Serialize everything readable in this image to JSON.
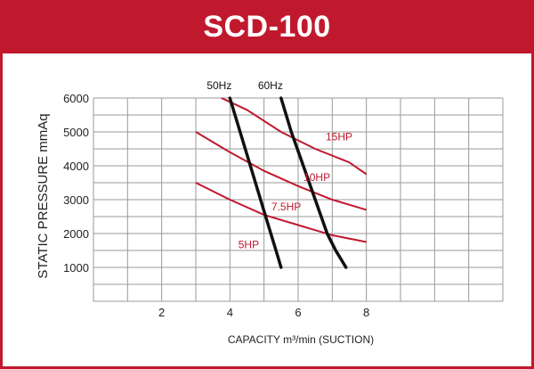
{
  "header": {
    "title": "SCD-100"
  },
  "colors": {
    "brand": "#c0192e",
    "grid": "#9a9a9a",
    "freq_line": "#111111",
    "hp_line": "#c0192e"
  },
  "chart_data": {
    "type": "line",
    "title": "SCD-100",
    "xlabel": "CAPACITY m³/min (SUCTION)",
    "ylabel": "STATIC PRESSURE mmAq",
    "xlim": [
      0,
      12
    ],
    "ylim": [
      0,
      6000
    ],
    "xticks": [
      2,
      4,
      6,
      8
    ],
    "yticks": [
      1000,
      2000,
      3000,
      4000,
      5000,
      6000
    ],
    "grid": true,
    "frequency_curves": [
      {
        "name": "50Hz",
        "points": [
          [
            4.0,
            6000
          ],
          [
            4.3,
            5000
          ],
          [
            4.6,
            4000
          ],
          [
            4.9,
            3000
          ],
          [
            5.2,
            2000
          ],
          [
            5.35,
            1500
          ],
          [
            5.5,
            1000
          ]
        ]
      },
      {
        "name": "60Hz",
        "points": [
          [
            5.5,
            6000
          ],
          [
            5.8,
            5000
          ],
          [
            6.15,
            4000
          ],
          [
            6.5,
            3000
          ],
          [
            6.85,
            2000
          ],
          [
            7.1,
            1500
          ],
          [
            7.4,
            1000
          ]
        ]
      }
    ],
    "series": [
      {
        "name": "15HP",
        "points": [
          [
            3.75,
            6000
          ],
          [
            4.5,
            5650
          ],
          [
            5.5,
            5000
          ],
          [
            6.5,
            4500
          ],
          [
            7.5,
            4100
          ],
          [
            8.0,
            3750
          ]
        ]
      },
      {
        "name": "10HP",
        "points": [
          [
            3.0,
            5000
          ],
          [
            4.0,
            4400
          ],
          [
            5.0,
            3850
          ],
          [
            6.0,
            3400
          ],
          [
            7.0,
            3000
          ],
          [
            8.0,
            2700
          ]
        ]
      },
      {
        "name": "7.5HP",
        "points": [
          [
            3.0,
            3500
          ],
          [
            4.0,
            3000
          ],
          [
            5.0,
            2550
          ],
          [
            6.0,
            2250
          ],
          [
            7.0,
            1950
          ],
          [
            8.0,
            1750
          ]
        ]
      },
      {
        "name": "5HP",
        "points": []
      }
    ]
  }
}
